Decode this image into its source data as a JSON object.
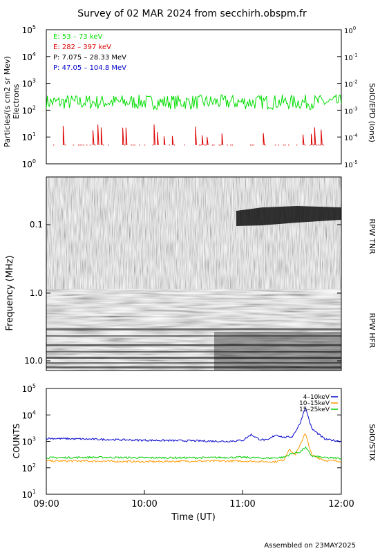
{
  "title": "Survey of 02 MAR 2024 from secchirh.obspm.fr",
  "footer": "Assembled on 23MAY2025",
  "colors": {
    "e_low": "#00dd00",
    "e_high": "#dd0000",
    "p_low": "#000000",
    "p_high": "#0000cc",
    "stix_low": "#0000cc",
    "stix_mid": "#ff9900",
    "stix_high": "#00cc00"
  },
  "chart_data": [
    {
      "type": "line",
      "panel": "epd",
      "ylabel": "Particles/(s cm2 sr Mev)",
      "ylabel2": "Electrons",
      "right_label": "SolO/EPD (ions)",
      "yscale": "log",
      "ylim": [
        1,
        100000
      ],
      "y_ticks": [
        "10",
        "10",
        "10",
        "10",
        "10",
        "10"
      ],
      "y_tick_exp": [
        "0",
        "1",
        "2",
        "3",
        "4",
        "5"
      ],
      "y2_ticks": [
        "10",
        "10",
        "10",
        "10",
        "10",
        "10"
      ],
      "y2_tick_exp": [
        "-5",
        "-4",
        "-3",
        "-2",
        "-1",
        "0"
      ],
      "legend": [
        {
          "label": "E: 53 – 73 keV",
          "color": "#00dd00"
        },
        {
          "label": "E: 282 – 397 keV",
          "color": "#dd0000"
        },
        {
          "label": "P: 7.075 – 28.33 MeV",
          "color": "#000000"
        },
        {
          "label": "P: 47.05 – 104.8 MeV",
          "color": "#0000cc"
        }
      ],
      "series": [
        {
          "name": "E: 53 – 73 keV",
          "typical": 200,
          "range": [
            100,
            400
          ]
        },
        {
          "name": "E: 282 – 397 keV",
          "typical": 5,
          "range": [
            4,
            30
          ]
        }
      ]
    },
    {
      "type": "heatmap",
      "panel": "rpw",
      "ylabel": "Frequency (MHz)",
      "right_labels": [
        "RPW TNR",
        "RPW HFR"
      ],
      "y_ticks": [
        "0.1",
        "1.0",
        "10.0"
      ],
      "features": [
        {
          "description": "dark band",
          "time_start": "10:50",
          "time_end": "12:00",
          "freq_mhz": [
            0.07,
            0.14
          ]
        }
      ]
    },
    {
      "type": "line",
      "panel": "stix",
      "ylabel": "COUNTS",
      "right_label": "SolO/STIX",
      "xlabel": "Time (UT)",
      "yscale": "log",
      "ylim": [
        10,
        100000
      ],
      "y_ticks": [
        "10",
        "10",
        "10",
        "10",
        "10"
      ],
      "y_tick_exp": [
        "1",
        "2",
        "3",
        "4",
        "5"
      ],
      "x_ticks": [
        "09:00",
        "10:00",
        "11:00",
        "12:00"
      ],
      "legend": [
        {
          "label": "4–10keV",
          "color": "#0000cc"
        },
        {
          "label": "10–15keV",
          "color": "#ff9900"
        },
        {
          "label": "15–25keV",
          "color": "#00cc00"
        }
      ],
      "series": [
        {
          "name": "4–10keV",
          "x": [
            "09:00",
            "09:30",
            "10:00",
            "10:30",
            "10:50",
            "11:00",
            "11:05",
            "11:10",
            "11:15",
            "11:20",
            "11:25",
            "11:30",
            "11:33",
            "11:35",
            "11:38",
            "11:42",
            "11:50",
            "12:00"
          ],
          "y": [
            1300,
            1200,
            1100,
            1050,
            1000,
            1100,
            1800,
            1200,
            1100,
            1800,
            1400,
            1500,
            3000,
            5000,
            20000,
            3000,
            1200,
            1000
          ]
        },
        {
          "name": "10–15keV",
          "x": [
            "09:00",
            "09:30",
            "10:00",
            "10:30",
            "11:00",
            "11:15",
            "11:20",
            "11:25",
            "11:28",
            "11:32",
            "11:35",
            "11:38",
            "11:42",
            "11:50",
            "12:00"
          ],
          "y": [
            180,
            180,
            170,
            180,
            180,
            170,
            170,
            200,
            500,
            300,
            800,
            2000,
            300,
            190,
            180
          ]
        },
        {
          "name": "15–25keV",
          "x": [
            "09:00",
            "09:30",
            "10:00",
            "10:30",
            "11:00",
            "11:15",
            "11:25",
            "11:30",
            "11:35",
            "11:38",
            "11:42",
            "11:50",
            "12:00"
          ],
          "y": [
            240,
            250,
            240,
            240,
            250,
            230,
            250,
            350,
            400,
            600,
            280,
            240,
            230
          ]
        }
      ]
    }
  ]
}
